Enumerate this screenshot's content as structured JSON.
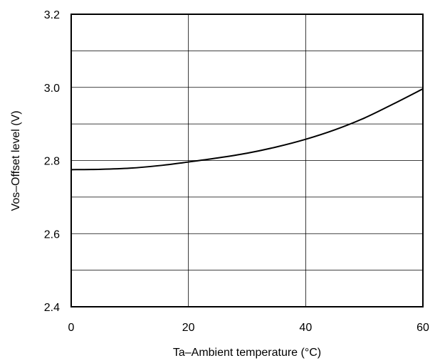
{
  "chart_data": {
    "type": "line",
    "title": "",
    "xlabel": "Ta–Ambient temperature (°C)",
    "ylabel": "Vos–Offset level (V)",
    "xlim": [
      0,
      60
    ],
    "ylim": [
      2.4,
      3.2
    ],
    "x_ticks": [
      0,
      20,
      40,
      60
    ],
    "x_tick_labels": [
      "0",
      "20",
      "40",
      "60"
    ],
    "y_ticks": [
      2.4,
      2.6,
      2.8,
      3.0,
      3.2
    ],
    "y_tick_labels": [
      "2.4",
      "2.6",
      "2.8",
      "3.0",
      "3.2"
    ],
    "grid": true,
    "series": [
      {
        "x": [
          0,
          5,
          10,
          15,
          20,
          25,
          30,
          35,
          40,
          45,
          50,
          55,
          60
        ],
        "y": [
          2.775,
          2.776,
          2.779,
          2.786,
          2.796,
          2.807,
          2.82,
          2.837,
          2.858,
          2.884,
          2.916,
          2.955,
          2.996
        ]
      }
    ]
  }
}
